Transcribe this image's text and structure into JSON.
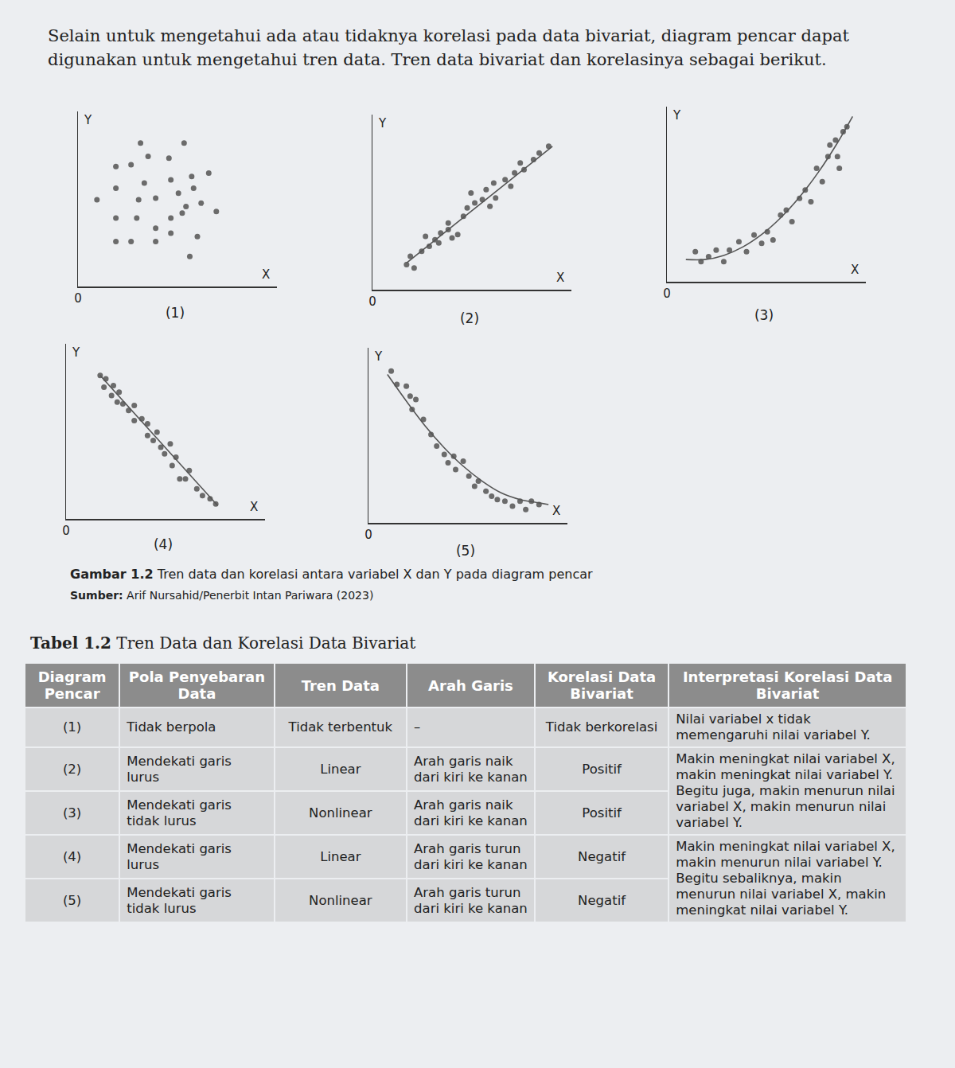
{
  "intro": "Selain untuk mengetahui ada atau tidaknya korelasi pada data bivariat, diagram pencar dapat digunakan untuk mengetahui tren data. Tren data bivariat dan korelasinya sebagai berikut.",
  "chart_data": [
    {
      "type": "scatter",
      "caption": "(1)",
      "x_label": "X",
      "y_label": "Y",
      "xlim": [
        0,
        10.5
      ],
      "ylim": [
        0,
        10.5
      ],
      "xticks": [
        0
      ],
      "yticks": [],
      "tick_labels": "x",
      "grid": false,
      "series": [
        {
          "type": "scatter",
          "color": "#6b6b6b",
          "x": [
            3.3,
            5.6,
            3.7,
            4.8,
            2.0,
            2.8,
            6.0,
            6.9,
            2.0,
            3.5,
            4.9,
            6.1,
            1.0,
            3.2,
            4.1,
            5.3,
            5.7,
            6.5,
            2.0,
            3.1,
            4.9,
            7.3,
            4.1,
            4.9,
            6.3,
            2.0,
            2.8,
            4.1,
            5.9,
            5.5
          ],
          "values": [
            8.6,
            8.6,
            7.8,
            7.7,
            7.2,
            7.3,
            6.6,
            6.8,
            5.9,
            6.2,
            6.4,
            5.9,
            5.2,
            5.2,
            5.3,
            5.6,
            4.8,
            5.0,
            4.1,
            4.1,
            4.1,
            4.5,
            3.5,
            3.2,
            3.0,
            2.7,
            2.7,
            2.7,
            1.8,
            4.4
          ]
        }
      ]
    },
    {
      "type": "scatter",
      "caption": "(2)",
      "x_label": "X",
      "y_label": "Y",
      "xlim": [
        0,
        10.5
      ],
      "ylim": [
        0,
        10.5
      ],
      "xticks": [
        0
      ],
      "yticks": [],
      "tick_labels": "x",
      "grid": false,
      "series": [
        {
          "type": "scatter",
          "color": "#6b6b6b",
          "x": [
            1.8,
            2.2,
            2.0,
            2.6,
            3.0,
            2.8,
            3.3,
            3.6,
            3.5,
            4.0,
            4.2,
            4.5,
            4.0,
            4.8,
            5.0,
            5.4,
            5.2,
            5.8,
            6.0,
            6.2,
            6.5,
            6.4,
            7.0,
            7.3,
            7.5,
            7.8,
            8.0,
            8.5,
            8.8,
            9.3
          ],
          "values": [
            1.5,
            1.3,
            2.0,
            2.3,
            2.6,
            3.2,
            3.0,
            3.4,
            2.8,
            3.6,
            3.1,
            3.3,
            4.0,
            4.4,
            4.9,
            5.2,
            5.8,
            5.4,
            6.0,
            5.0,
            5.5,
            6.4,
            6.6,
            6.2,
            7.0,
            7.6,
            7.2,
            7.8,
            8.2,
            8.6
          ]
        },
        {
          "type": "line",
          "color": "#555555",
          "x": [
            1.8,
            9.5
          ],
          "values": [
            1.6,
            8.6
          ]
        }
      ]
    },
    {
      "type": "scatter",
      "caption": "(3)",
      "x_label": "X",
      "y_label": "Y",
      "xlim": [
        0,
        10.5
      ],
      "ylim": [
        0,
        10.5
      ],
      "xticks": [
        0
      ],
      "yticks": [],
      "tick_labels": "x",
      "grid": false,
      "series": [
        {
          "type": "scatter",
          "color": "#6b6b6b",
          "x": [
            1.5,
            1.8,
            2.2,
            2.6,
            3.0,
            3.3,
            3.8,
            4.2,
            4.6,
            5.0,
            5.3,
            5.6,
            6.0,
            6.3,
            6.6,
            7.0,
            7.3,
            7.6,
            7.9,
            8.2,
            8.5,
            8.6,
            8.9,
            9.0,
            9.3,
            9.5,
            9.1
          ],
          "values": [
            1.8,
            1.2,
            1.5,
            1.9,
            1.2,
            1.9,
            2.4,
            1.8,
            2.8,
            2.3,
            3.0,
            2.5,
            4.0,
            4.3,
            3.6,
            5.0,
            5.5,
            4.8,
            6.8,
            6.0,
            7.5,
            8.2,
            8.5,
            7.5,
            9.0,
            9.3,
            6.8
          ]
        },
        {
          "type": "line",
          "color": "#555555",
          "x": [
            1,
            2,
            3,
            4,
            5,
            6,
            7,
            8,
            9,
            9.8
          ],
          "values": [
            1.33,
            1.33,
            1.58,
            2.08,
            2.83,
            3.83,
            5.08,
            6.58,
            8.33,
            9.91
          ]
        }
      ]
    },
    {
      "type": "scatter",
      "caption": "(4)",
      "x_label": "X",
      "y_label": "Y",
      "xlim": [
        0,
        10.5
      ],
      "ylim": [
        0,
        10.5
      ],
      "xticks": [
        0
      ],
      "yticks": [],
      "tick_labels": "x",
      "grid": false,
      "series": [
        {
          "type": "scatter",
          "color": "#6b6b6b",
          "x": [
            1.8,
            2.1,
            2.0,
            2.5,
            2.4,
            2.8,
            3.0,
            2.7,
            3.3,
            3.6,
            3.6,
            4.0,
            4.3,
            4.3,
            4.6,
            4.8,
            5.0,
            5.2,
            5.5,
            5.6,
            5.8,
            6.0,
            6.3,
            6.5,
            6.9,
            7.2,
            7.6,
            7.9
          ],
          "values": [
            8.6,
            8.4,
            7.9,
            8.0,
            7.4,
            7.6,
            6.9,
            7.0,
            6.5,
            6.8,
            5.9,
            6.0,
            5.7,
            5.0,
            4.7,
            5.2,
            4.3,
            3.9,
            4.5,
            3.2,
            3.7,
            2.4,
            2.4,
            2.9,
            1.8,
            1.4,
            1.2,
            0.9
          ]
        },
        {
          "type": "line",
          "color": "#555555",
          "x": [
            1.8,
            8.0
          ],
          "values": [
            8.6,
            0.8
          ]
        }
      ]
    },
    {
      "type": "scatter",
      "caption": "(5)",
      "x_label": "X",
      "y_label": "Y",
      "xlim": [
        0,
        10.5
      ],
      "ylim": [
        0,
        10.5
      ],
      "xticks": [
        0
      ],
      "yticks": [],
      "tick_labels": "x",
      "grid": false,
      "series": [
        {
          "type": "scatter",
          "color": "#6b6b6b",
          "x": [
            1.2,
            1.5,
            2.0,
            2.2,
            2.5,
            2.3,
            2.9,
            3.3,
            3.6,
            4.0,
            4.2,
            4.5,
            4.6,
            5.0,
            5.3,
            5.6,
            5.8,
            6.2,
            6.5,
            6.8,
            7.2,
            7.6,
            8.0,
            8.3,
            8.6,
            9.0
          ],
          "values": [
            9.1,
            8.3,
            8.2,
            7.6,
            7.4,
            6.8,
            6.2,
            5.3,
            4.6,
            4.1,
            3.6,
            4.0,
            3.2,
            3.7,
            2.8,
            2.2,
            2.5,
            1.9,
            1.6,
            1.4,
            1.3,
            1.0,
            1.3,
            0.8,
            1.3,
            1.1
          ]
        },
        {
          "type": "line",
          "color": "#555555",
          "x": [
            1,
            2,
            3,
            4,
            5,
            6,
            7,
            8,
            9,
            9.5
          ],
          "values": [
            8.9,
            7.3,
            5.8,
            4.5,
            3.4,
            2.5,
            1.8,
            1.4,
            1.2,
            1.1
          ]
        }
      ]
    }
  ],
  "figure_caption": {
    "label": "Gambar 1.2",
    "text": "Tren data dan korelasi antara variabel X dan Y pada diagram pencar"
  },
  "source": {
    "label": "Sumber:",
    "text": "Arif Nursahid/Penerbit Intan Pariwara (2023)"
  },
  "table": {
    "label": "Tabel 1.2",
    "title": "Tren Data dan Korelasi Data Bivariat",
    "header": [
      "Diagram Pencar",
      "Pola Penyebaran Data",
      "Tren Data",
      "Arah Garis",
      "Korelasi Data Bivariat",
      "Interpretasi Korelasi Data Bivariat"
    ],
    "rows": [
      [
        "(1)",
        "Tidak berpola",
        "Tidak terbentuk",
        "–",
        "Tidak berkorelasi",
        "Nilai variabel x tidak memengaruhi nilai variabel Y."
      ],
      [
        "(2)",
        "Mendekati garis lurus",
        "Linear",
        "Arah garis naik dari kiri ke kanan",
        "Positif",
        "Makin meningkat nilai variabel X, makin meningkat nilai variabel Y. Begitu juga, makin menurun nilai variabel X, makin menurun nilai variabel Y."
      ],
      [
        "(3)",
        "Mendekati garis tidak lurus",
        "Nonlinear",
        "Arah garis naik dari kiri ke kanan",
        "Positif",
        null
      ],
      [
        "(4)",
        "Mendekati garis lurus",
        "Linear",
        "Arah garis turun dari kiri ke kanan",
        "Negatif",
        "Makin meningkat nilai variabel X, makin menurun nilai variabel Y. Begitu sebaliknya, makin menurun nilai variabel X, makin meningkat nilai variabel Y."
      ],
      [
        "(5)",
        "Mendekati garis tidak lurus",
        "Nonlinear",
        "Arah garis turun dari kiri ke kanan",
        "Negatif",
        null
      ]
    ]
  }
}
